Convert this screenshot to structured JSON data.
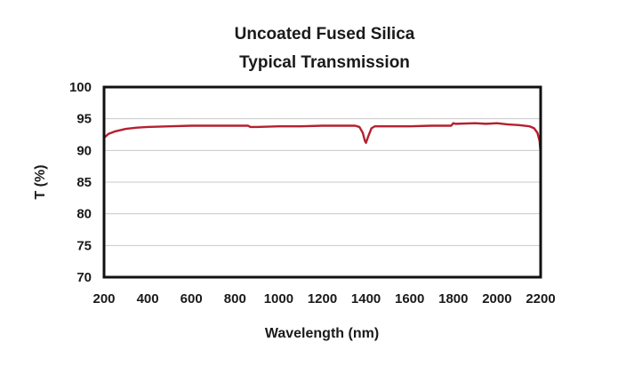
{
  "chart_data": {
    "type": "line",
    "title": "Uncoated Fused Silica",
    "subtitle": "Typical Transmission",
    "xlabel": "Wavelength (nm)",
    "ylabel": "T (%)",
    "xlim": [
      200,
      2200
    ],
    "ylim": [
      70,
      100
    ],
    "x_ticks": [
      200,
      400,
      600,
      800,
      1000,
      1200,
      1400,
      1600,
      1800,
      2000,
      2200
    ],
    "y_ticks": [
      70,
      75,
      80,
      85,
      90,
      95,
      100
    ],
    "grid": "horizontal",
    "legend": "none",
    "line_color": "#b5202e",
    "series": [
      {
        "x": [
          200,
          220,
          250,
          300,
          350,
          400,
          500,
          600,
          700,
          800,
          860,
          870,
          900,
          1000,
          1100,
          1200,
          1300,
          1350,
          1370,
          1385,
          1395,
          1400,
          1410,
          1425,
          1440,
          1460,
          1500,
          1600,
          1700,
          1790,
          1800,
          1810,
          1900,
          1950,
          2000,
          2050,
          2100,
          2150,
          2170,
          2185,
          2195,
          2200
        ],
        "y": [
          92.0,
          92.6,
          93.0,
          93.4,
          93.6,
          93.7,
          93.8,
          93.9,
          93.9,
          93.9,
          93.9,
          93.7,
          93.7,
          93.8,
          93.8,
          93.9,
          93.9,
          93.9,
          93.7,
          92.8,
          91.5,
          91.2,
          92.2,
          93.5,
          93.8,
          93.8,
          93.8,
          93.8,
          93.9,
          93.9,
          94.3,
          94.2,
          94.3,
          94.2,
          94.3,
          94.1,
          94.0,
          93.8,
          93.5,
          92.8,
          91.5,
          89.5
        ]
      }
    ]
  }
}
